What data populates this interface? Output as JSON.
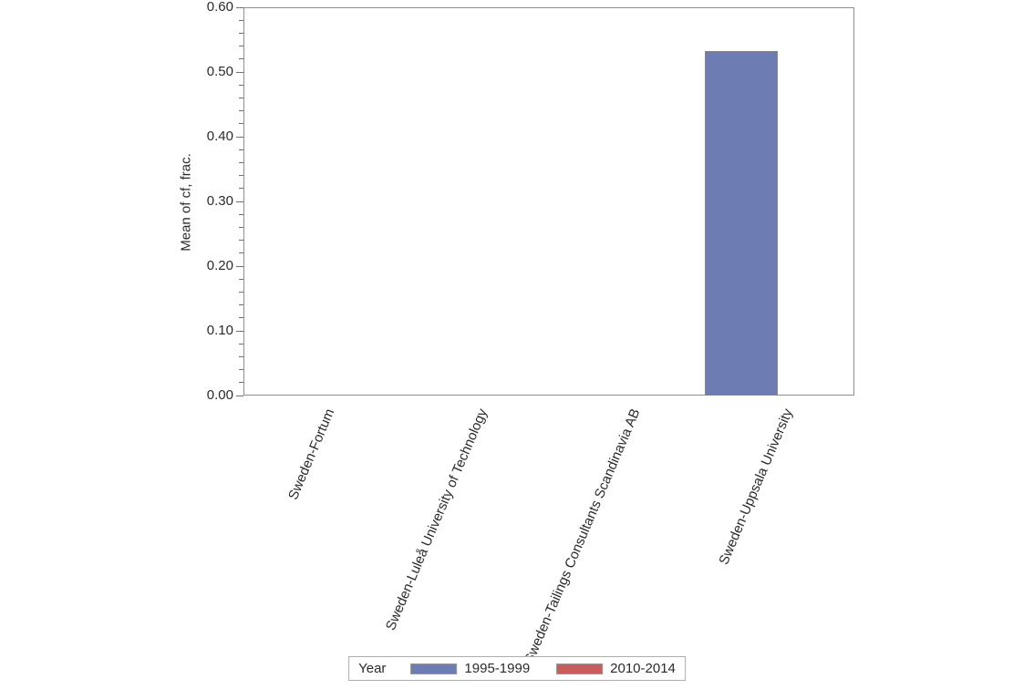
{
  "chart_data": {
    "type": "bar",
    "title": "",
    "xlabel": "",
    "ylabel": "Mean of cf, frac.",
    "categories": [
      "Sweden-Fortum",
      "Sweden-Luleå University of Technology",
      "Sweden-Tailings Consultants Scandinavia AB",
      "Sweden-Uppsala University"
    ],
    "series": [
      {
        "name": "1995-1999",
        "color": "#6D7DB3",
        "values": [
          0,
          0,
          0,
          0.533
        ]
      },
      {
        "name": "2010-2014",
        "color": "#C85D5D",
        "values": [
          0,
          0,
          0,
          0
        ]
      }
    ],
    "ylim": [
      0,
      0.6
    ],
    "ytick_labels": [
      "0.00",
      "0.10",
      "0.20",
      "0.30",
      "0.40",
      "0.50",
      "0.60"
    ],
    "ytick_step": 0.1,
    "minor_tick_step": 0.02,
    "grid": false,
    "legend": {
      "title": "Year",
      "position": "bottom-center",
      "entries": [
        {
          "label": "1995-1999",
          "color": "#6D7DB3"
        },
        {
          "label": "2010-2014",
          "color": "#C85D5D"
        }
      ]
    }
  },
  "colors": {
    "background": "#FFFFFF",
    "axis": "#8D9093",
    "tick": "#707070",
    "text": "#2B2B2B",
    "bar_border": "#858585",
    "legend_border": "#ADADAD"
  }
}
